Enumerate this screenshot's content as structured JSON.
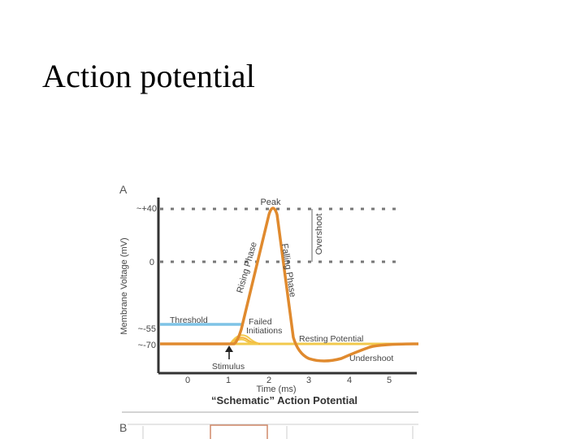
{
  "slide": {
    "title": "Action potential"
  },
  "figure": {
    "panel_a_label": "A",
    "panel_b_label": "B",
    "y_axis_label": "Membrane Voltage (mV)",
    "x_axis_label": "Time (ms)",
    "caption": "“Schematic” Action Potential",
    "y_ticks": [
      "~+40",
      "0",
      "~-55",
      "~-70"
    ],
    "x_ticks": [
      "0",
      "1",
      "2",
      "3",
      "4",
      "5"
    ],
    "annotations": {
      "peak": "Peak",
      "overshoot": "Overshoot",
      "rising_phase": "Rising Phase",
      "falling_phase": "Falling Phase",
      "threshold": "Threshold",
      "failed_initiations_1": "Failed",
      "failed_initiations_2": "Initiations",
      "resting_potential": "Resting Potential",
      "undershoot": "Undershoot",
      "stimulus": "Stimulus"
    },
    "colors": {
      "trace": "#e08a2e",
      "threshold": "#7ec3e6",
      "resting": "#f2c94c",
      "axis": "#333333",
      "grid": "#777777",
      "text": "#444444"
    }
  }
}
